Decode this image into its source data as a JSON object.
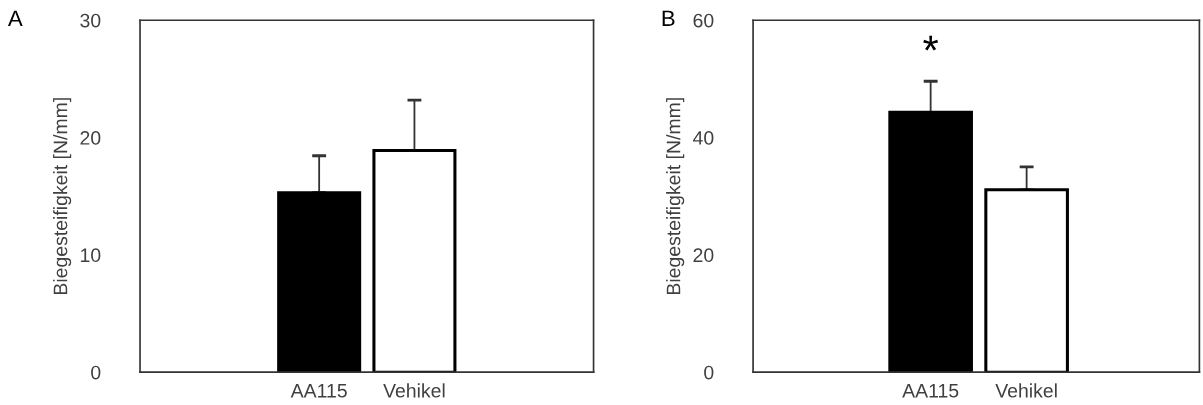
{
  "chart_data": [
    {
      "type": "bar",
      "title": "A",
      "ylabel": "Biegesteifigkeit [N/mm]",
      "categories": [
        "AA115",
        "Vehikel"
      ],
      "values": [
        15.3,
        18.9
      ],
      "colors": [
        "#000000",
        "#ffffff"
      ],
      "errors": [
        [
          15.3,
          18.45
        ],
        [
          18.9,
          23.2
        ]
      ],
      "ylim": [
        0,
        30
      ],
      "yticks": [
        0,
        10,
        20,
        30
      ],
      "grid": false,
      "legend": false
    },
    {
      "type": "bar",
      "title": "B",
      "ylabel": "Biegesteifigkeit [N/mm]",
      "categories": [
        "AA115",
        "Vehikel"
      ],
      "values": [
        44.3,
        31.1
      ],
      "colors": [
        "#000000",
        "#ffffff"
      ],
      "errors": [
        [
          44.3,
          49.6
        ],
        [
          31.1,
          35.0
        ]
      ],
      "ylim": [
        0,
        60
      ],
      "yticks": [
        0,
        20,
        40,
        60
      ],
      "grid": false,
      "legend": false,
      "annotations": [
        "*"
      ]
    }
  ]
}
